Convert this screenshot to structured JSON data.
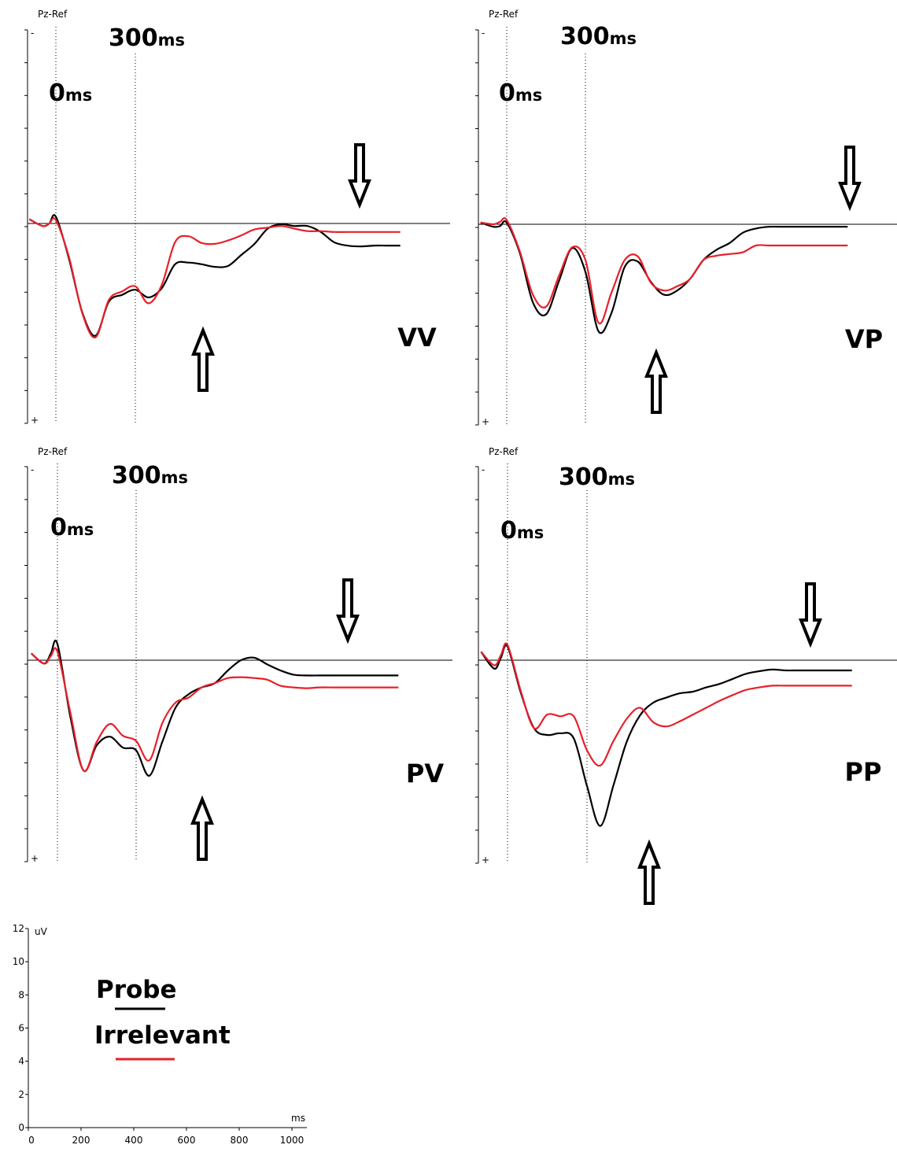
{
  "chart_data": [
    {
      "type": "line",
      "channel": "Pz-Ref",
      "condition_label": "VV",
      "marker_labels": {
        "onset": {
          "num": "0",
          "unit": "ms"
        },
        "p300": {
          "num": "300",
          "unit": "ms"
        }
      },
      "polarity_labels": {
        "top": "-",
        "bottom": "+"
      },
      "x_unit": "ms",
      "y_unit": "uV",
      "series": [
        {
          "name": "Probe",
          "color": "#000000",
          "x": [
            0,
            50,
            75,
            100,
            150,
            200,
            250,
            300,
            350,
            400,
            450,
            500,
            550,
            600,
            650,
            700,
            750,
            800,
            850,
            900,
            950,
            1000,
            1050,
            1100,
            1150,
            1200,
            1250,
            1300,
            1350,
            1400
          ],
          "y": [
            0.5,
            -0.3,
            0,
            0.8,
            -4.2,
            -10.5,
            -13.2,
            -9.2,
            -8.4,
            -7.8,
            -8.7,
            -7.6,
            -4.8,
            -4.6,
            -4.8,
            -5.1,
            -5.0,
            -3.7,
            -2.4,
            -0.6,
            -0.1,
            -0.3,
            -0.3,
            -1.0,
            -2.2,
            -2.6,
            -2.7,
            -2.6,
            -2.6,
            -2.6
          ]
        },
        {
          "name": "Irrelevant",
          "color": "#e8202a",
          "x": [
            0,
            50,
            75,
            100,
            150,
            200,
            250,
            300,
            350,
            400,
            450,
            500,
            550,
            600,
            650,
            700,
            750,
            800,
            850,
            900,
            950,
            1000,
            1050,
            1100,
            1150,
            1200,
            1250,
            1300,
            1350,
            1400
          ],
          "y": [
            0.5,
            -0.3,
            0,
            0.4,
            -4.0,
            -10.6,
            -13.4,
            -9.0,
            -8.0,
            -7.4,
            -9.4,
            -7.2,
            -2.2,
            -1.5,
            -2.3,
            -2.4,
            -2.0,
            -1.4,
            -0.7,
            -0.5,
            -0.3,
            -0.6,
            -0.9,
            -0.9,
            -1.0,
            -1.0,
            -1.0,
            -1.0,
            -1.0,
            -1.0
          ]
        }
      ]
    },
    {
      "type": "line",
      "channel": "Pz-Ref",
      "condition_label": "VP",
      "marker_labels": {
        "onset": {
          "num": "0",
          "unit": "ms"
        },
        "p300": {
          "num": "300",
          "unit": "ms"
        }
      },
      "polarity_labels": {
        "top": "-",
        "bottom": "+"
      },
      "x_unit": "ms",
      "y_unit": "uV",
      "series": [
        {
          "name": "Probe",
          "color": "#000000",
          "x": [
            0,
            50,
            75,
            100,
            150,
            200,
            250,
            300,
            350,
            400,
            450,
            500,
            550,
            600,
            650,
            700,
            750,
            800,
            850,
            900,
            950,
            1000,
            1050,
            1100,
            1150,
            1200,
            1250,
            1300,
            1350,
            1400
          ],
          "y": [
            0.2,
            -0.3,
            -0.2,
            0.2,
            -3.4,
            -9.2,
            -10.6,
            -6.6,
            -2.8,
            -5.6,
            -12.6,
            -10.4,
            -5.0,
            -4.4,
            -6.8,
            -8.3,
            -7.8,
            -6.4,
            -4.2,
            -3.0,
            -2.2,
            -1.0,
            -0.5,
            -0.3,
            -0.3,
            -0.3,
            -0.3,
            -0.3,
            -0.3,
            -0.3
          ]
        },
        {
          "name": "Irrelevant",
          "color": "#e8202a",
          "x": [
            0,
            50,
            75,
            100,
            150,
            200,
            250,
            300,
            350,
            400,
            450,
            500,
            550,
            600,
            650,
            700,
            750,
            800,
            850,
            900,
            950,
            1000,
            1050,
            1100,
            1150,
            1200,
            1250,
            1300,
            1350,
            1400
          ],
          "y": [
            0.2,
            0,
            0.3,
            0.5,
            -3.2,
            -8.3,
            -9.7,
            -6.0,
            -2.7,
            -4.2,
            -11.6,
            -8.0,
            -4.2,
            -3.8,
            -6.9,
            -7.8,
            -7.3,
            -6.4,
            -4.2,
            -3.7,
            -3.5,
            -3.3,
            -2.5,
            -2.5,
            -2.5,
            -2.5,
            -2.5,
            -2.5,
            -2.5,
            -2.5
          ]
        }
      ]
    },
    {
      "type": "line",
      "channel": "Pz-Ref",
      "condition_label": "PV",
      "marker_labels": {
        "onset": {
          "num": "0",
          "unit": "ms"
        },
        "p300": {
          "num": "300",
          "unit": "ms"
        }
      },
      "polarity_labels": {
        "top": "-",
        "bottom": "+"
      },
      "x_unit": "ms",
      "y_unit": "uV",
      "series": [
        {
          "name": "Probe",
          "color": "#000000",
          "x": [
            0,
            50,
            75,
            100,
            150,
            200,
            250,
            300,
            350,
            400,
            450,
            500,
            550,
            600,
            650,
            700,
            750,
            800,
            850,
            900,
            950,
            1000,
            1050,
            1100,
            1150,
            1200,
            1250,
            1300,
            1350,
            1400
          ],
          "y": [
            0.8,
            -0.4,
            0.8,
            1.9,
            -6.8,
            -13.0,
            -10.0,
            -9.0,
            -10.3,
            -10.6,
            -13.6,
            -9.6,
            -5.6,
            -4.0,
            -3.2,
            -2.7,
            -1.2,
            0,
            0.3,
            -0.5,
            -1.2,
            -1.7,
            -1.8,
            -1.8,
            -1.8,
            -1.8,
            -1.8,
            -1.8,
            -1.8,
            -1.8
          ]
        },
        {
          "name": "Irrelevant",
          "color": "#e8202a",
          "x": [
            0,
            50,
            75,
            100,
            150,
            200,
            250,
            300,
            350,
            400,
            450,
            500,
            550,
            600,
            650,
            700,
            750,
            800,
            850,
            900,
            950,
            1000,
            1050,
            1100,
            1150,
            1200,
            1250,
            1300,
            1350,
            1400
          ],
          "y": [
            0.8,
            -0.4,
            0.5,
            1.0,
            -6.3,
            -13.0,
            -9.6,
            -7.5,
            -8.9,
            -9.5,
            -11.8,
            -7.4,
            -5.0,
            -4.4,
            -3.2,
            -2.7,
            -2.1,
            -2.0,
            -2.1,
            -2.3,
            -3.0,
            -3.2,
            -3.3,
            -3.2,
            -3.2,
            -3.2,
            -3.2,
            -3.2,
            -3.2,
            -3.2
          ]
        }
      ]
    },
    {
      "type": "line",
      "channel": "Pz-Ref",
      "condition_label": "PP",
      "marker_labels": {
        "onset": {
          "num": "0",
          "unit": "ms"
        },
        "p300": {
          "num": "300",
          "unit": "ms"
        }
      },
      "polarity_labels": {
        "top": "-",
        "bottom": "+"
      },
      "x_unit": "ms",
      "y_unit": "uV",
      "series": [
        {
          "name": "Probe",
          "color": "#000000",
          "x": [
            0,
            50,
            75,
            100,
            150,
            200,
            250,
            300,
            350,
            400,
            450,
            500,
            550,
            600,
            650,
            700,
            750,
            800,
            850,
            900,
            950,
            1000,
            1050,
            1100,
            1150,
            1200,
            1250,
            1300,
            1350,
            1400
          ],
          "y": [
            1.0,
            -1.0,
            0.3,
            1.6,
            -3.8,
            -8.0,
            -8.8,
            -8.6,
            -9.2,
            -14.8,
            -19.5,
            -14.7,
            -9.6,
            -6.5,
            -5.0,
            -4.4,
            -3.9,
            -3.7,
            -3.2,
            -2.8,
            -2.2,
            -1.6,
            -1.3,
            -1.1,
            -1.2,
            -1.2,
            -1.2,
            -1.2,
            -1.2,
            -1.2
          ]
        },
        {
          "name": "Irrelevant",
          "color": "#e8202a",
          "x": [
            0,
            50,
            75,
            100,
            150,
            200,
            250,
            300,
            350,
            400,
            450,
            500,
            550,
            600,
            650,
            700,
            750,
            800,
            850,
            900,
            950,
            1000,
            1050,
            1100,
            1150,
            1200,
            1250,
            1300,
            1350,
            1400
          ],
          "y": [
            1.0,
            -0.6,
            0.6,
            1.8,
            -3.6,
            -8.0,
            -6.4,
            -6.6,
            -6.6,
            -10.6,
            -12.4,
            -9.5,
            -6.9,
            -5.6,
            -7.3,
            -7.8,
            -7.2,
            -6.4,
            -5.6,
            -4.8,
            -4.1,
            -3.5,
            -3.2,
            -3.0,
            -3.0,
            -3.0,
            -3.0,
            -3.0,
            -3.0,
            -3.0
          ]
        }
      ]
    }
  ],
  "scale": {
    "y_unit": "uV",
    "x_unit": "ms",
    "y_ticks": [
      "0",
      "2",
      "4",
      "6",
      "8",
      "10",
      "12"
    ],
    "x_ticks": [
      "0",
      "200",
      "400",
      "600",
      "800",
      "1000"
    ]
  },
  "legend": {
    "probe_label": "Probe",
    "probe_color": "#000000",
    "irrelevant_label": "Irrelevant",
    "irrelevant_color": "#e8202a"
  }
}
